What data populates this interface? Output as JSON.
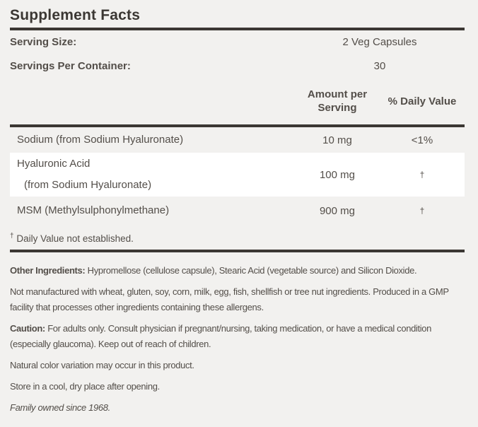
{
  "panel": {
    "title": "Supplement Facts",
    "serving_info": [
      {
        "label": "Serving Size:",
        "value": "2 Veg Capsules"
      },
      {
        "label": "Servings Per Container:",
        "value": "30"
      }
    ],
    "table": {
      "headers": {
        "amount": "Amount per Serving",
        "daily_value": "% Daily Value"
      },
      "rows": [
        {
          "name": "Sodium (from Sodium Hyaluronate)",
          "name_sub": "",
          "amount": "10 mg",
          "daily_value": "<1%"
        },
        {
          "name": "Hyaluronic Acid",
          "name_sub": "(from Sodium Hyaluronate)",
          "amount": "100 mg",
          "daily_value": "†"
        },
        {
          "name": "MSM (Methylsulphonylmethane)",
          "name_sub": "",
          "amount": "900 mg",
          "daily_value": "†"
        }
      ],
      "footnote_symbol": "†",
      "footnote_text": "Daily Value not established."
    },
    "notes": [
      {
        "lead": "Other Ingredients:",
        "text": "Hypromellose (cellulose capsule), Stearic Acid (vegetable source) and Silicon Dioxide."
      },
      {
        "lead": "",
        "text": "Not manufactured with wheat, gluten, soy, corn, milk, egg, fish, shellfish or tree nut ingredients. Produced in a GMP facility that processes other ingredients containing these allergens."
      },
      {
        "lead": "Caution:",
        "text": "For adults only. Consult physician if pregnant/nursing, taking medication, or have a medical condition (especially glaucoma). Keep out of reach of children."
      },
      {
        "lead": "",
        "text": "Natural color variation may occur in this product."
      },
      {
        "lead": "",
        "text": "Store in a cool, dry place after opening."
      },
      {
        "lead": "",
        "text": "Family owned since 1968."
      }
    ],
    "colors": {
      "background": "#f2f1ef",
      "rule": "#3b3733",
      "text": "#534e49",
      "highlight_row": "#ffffff"
    }
  }
}
